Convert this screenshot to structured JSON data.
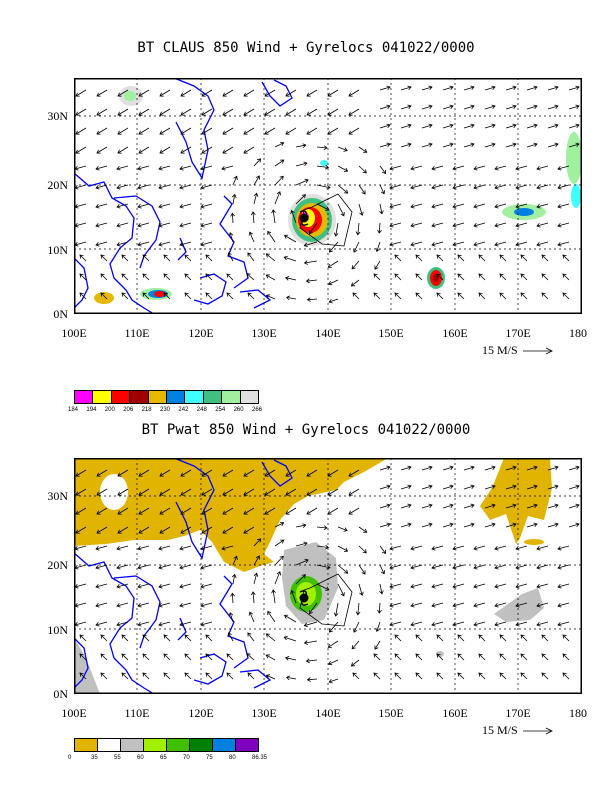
{
  "panels": [
    {
      "title": "BT CLAUS 850 Wind + Gyrelocs 041022/0000",
      "lat_labels": [
        "30N",
        "20N",
        "10N",
        "0N"
      ],
      "lon_labels": [
        "100E",
        "110E",
        "120E",
        "130E",
        "140E",
        "150E",
        "160E",
        "170E",
        "180"
      ],
      "ref_vector": "15 M/S",
      "legend": {
        "labels": [
          "184",
          "194",
          "200",
          "206",
          "218",
          "230",
          "242",
          "248",
          "254",
          "260",
          "266"
        ],
        "colors": [
          "#ff00ff",
          "#ffff00",
          "#ff0000",
          "#a00000",
          "#e6b800",
          "#0080e0",
          "#40ffff",
          "#40c080",
          "#a0f0a0",
          "#e0e0e0"
        ]
      }
    },
    {
      "title": "BT Pwat 850 Wind + Gyrelocs 041022/0000",
      "lat_labels": [
        "30N",
        "20N",
        "10N",
        "0N"
      ],
      "lon_labels": [
        "100E",
        "110E",
        "120E",
        "130E",
        "140E",
        "150E",
        "160E",
        "170E",
        "180"
      ],
      "ref_vector": "15 M/S",
      "legend": {
        "labels": [
          "0",
          "35",
          "55",
          "60",
          "65",
          "70",
          "75",
          "80",
          "86.35"
        ],
        "colors": [
          "#e0b400",
          "#ffffff",
          "#c0c0c0",
          "#a0f000",
          "#40c000",
          "#008000",
          "#0080e0",
          "#8000c0"
        ]
      }
    }
  ],
  "colors": {
    "coastline": "#0000ff",
    "grid": "#000000",
    "pwat_fill": "#e0b400",
    "claus_cold": "#ff0000"
  }
}
